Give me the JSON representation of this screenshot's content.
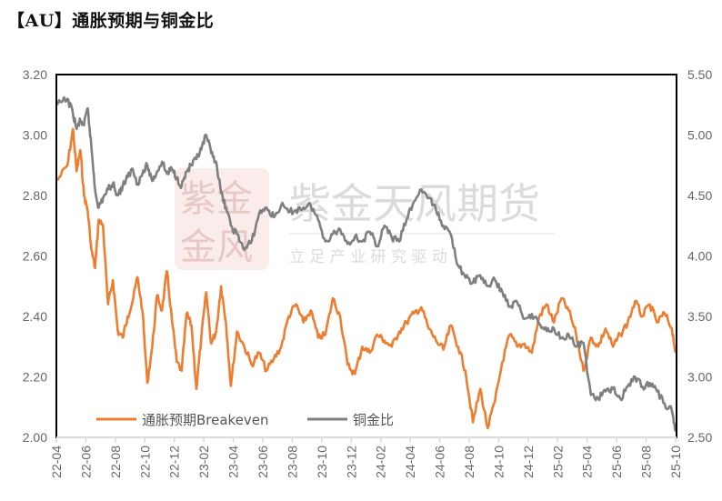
{
  "title": "【AU】通胀预期与铜金比",
  "watermark": {
    "company": "紫金天风期货",
    "slogan": "立 足 产 业   研 究 驱 动",
    "seal_chars": "紫金天风"
  },
  "legend": [
    {
      "label": "通胀预期Breakeven",
      "color": "#ED7D31"
    },
    {
      "label": "铜金比",
      "color": "#7F7F7F"
    }
  ],
  "chart_data": {
    "type": "line",
    "title": "【AU】通胀预期与铜金比",
    "xlabel": "",
    "ylabel_left": "",
    "ylabel_right": "",
    "x_ticks": [
      "22-04",
      "22-06",
      "22-08",
      "22-10",
      "22-12",
      "23-02",
      "23-04",
      "23-06",
      "23-08",
      "23-10",
      "23-12",
      "24-02",
      "24-04",
      "24-06",
      "24-08",
      "24-10",
      "24-12",
      "25-02",
      "25-04",
      "25-06",
      "25-08",
      "25-10"
    ],
    "y_left": {
      "min": 2.0,
      "max": 3.2,
      "ticks": [
        "2.00",
        "2.20",
        "2.40",
        "2.60",
        "2.80",
        "3.00",
        "3.20"
      ]
    },
    "y_right": {
      "min": 2.5,
      "max": 5.5,
      "ticks": [
        "2.50",
        "3.00",
        "3.50",
        "4.00",
        "4.50",
        "5.00",
        "5.50"
      ]
    },
    "grid": false,
    "legend_position": "bottom-left inside",
    "series": [
      {
        "name": "通胀预期Breakeven",
        "axis": "left",
        "color": "#ED7D31",
        "x": [
          "22-04",
          "22-04",
          "22-05",
          "22-05",
          "22-05",
          "22-05",
          "22-06",
          "22-06",
          "22-06",
          "22-06",
          "22-07",
          "22-07",
          "22-07",
          "22-08",
          "22-08",
          "22-08",
          "22-09",
          "22-09",
          "22-09",
          "22-10",
          "22-10",
          "22-10",
          "22-11",
          "22-11",
          "22-11",
          "22-12",
          "22-12",
          "22-12",
          "23-01",
          "23-01",
          "23-01",
          "23-02",
          "23-02",
          "23-02",
          "23-03",
          "23-03",
          "23-03",
          "23-04",
          "23-04",
          "23-05",
          "23-05",
          "23-06",
          "23-06",
          "23-07",
          "23-07",
          "23-08",
          "23-08",
          "23-09",
          "23-09",
          "23-10",
          "23-10",
          "23-11",
          "23-11",
          "23-12",
          "23-12",
          "24-01",
          "24-01",
          "24-02",
          "24-02",
          "24-03",
          "24-03",
          "24-04",
          "24-04",
          "24-05",
          "24-05",
          "24-06",
          "24-06",
          "24-07",
          "24-07",
          "24-08",
          "24-08",
          "24-09",
          "24-09",
          "24-10",
          "24-10",
          "24-11",
          "24-11",
          "24-12",
          "24-12",
          "25-01",
          "25-01",
          "25-02",
          "25-02",
          "25-03",
          "25-03",
          "25-04",
          "25-04",
          "25-05",
          "25-05",
          "25-06",
          "25-06",
          "25-07",
          "25-07",
          "25-08",
          "25-08",
          "25-09",
          "25-09",
          "25-10"
        ],
        "values": [
          2.85,
          2.9,
          3.02,
          2.88,
          2.95,
          2.8,
          2.75,
          2.62,
          2.56,
          2.72,
          2.7,
          2.44,
          2.52,
          2.35,
          2.33,
          2.4,
          2.45,
          2.53,
          2.42,
          2.18,
          2.3,
          2.47,
          2.42,
          2.55,
          2.39,
          2.25,
          2.22,
          2.41,
          2.37,
          2.16,
          2.33,
          2.48,
          2.31,
          2.35,
          2.5,
          2.38,
          2.17,
          2.35,
          2.3,
          2.24,
          2.28,
          2.22,
          2.26,
          2.3,
          2.4,
          2.44,
          2.38,
          2.42,
          2.33,
          2.34,
          2.46,
          2.4,
          2.24,
          2.21,
          2.3,
          2.28,
          2.34,
          2.32,
          2.3,
          2.35,
          2.38,
          2.41,
          2.43,
          2.36,
          2.32,
          2.29,
          2.37,
          2.3,
          2.22,
          2.05,
          2.16,
          2.03,
          2.12,
          2.25,
          2.34,
          2.3,
          2.31,
          2.28,
          2.4,
          2.44,
          2.38,
          2.46,
          2.42,
          2.34,
          2.22,
          2.33,
          2.3,
          2.36,
          2.3,
          2.34,
          2.38,
          2.45,
          2.4,
          2.44,
          2.38,
          2.41,
          2.36,
          2.28
        ]
      },
      {
        "name": "铜金比",
        "axis": "right",
        "color": "#7F7F7F",
        "x": [
          "22-04",
          "22-04",
          "22-05",
          "22-05",
          "22-05",
          "22-05",
          "22-06",
          "22-06",
          "22-06",
          "22-06",
          "22-07",
          "22-07",
          "22-07",
          "22-08",
          "22-08",
          "22-08",
          "22-09",
          "22-09",
          "22-09",
          "22-10",
          "22-10",
          "22-10",
          "22-11",
          "22-11",
          "22-11",
          "22-12",
          "22-12",
          "22-12",
          "23-01",
          "23-01",
          "23-01",
          "23-02",
          "23-02",
          "23-02",
          "23-03",
          "23-03",
          "23-03",
          "23-04",
          "23-04",
          "23-05",
          "23-05",
          "23-06",
          "23-06",
          "23-07",
          "23-07",
          "23-08",
          "23-08",
          "23-09",
          "23-09",
          "23-10",
          "23-10",
          "23-11",
          "23-11",
          "23-12",
          "23-12",
          "24-01",
          "24-01",
          "24-02",
          "24-02",
          "24-03",
          "24-03",
          "24-04",
          "24-04",
          "24-05",
          "24-05",
          "24-06",
          "24-06",
          "24-07",
          "24-07",
          "24-08",
          "24-08",
          "24-09",
          "24-09",
          "24-10",
          "24-10",
          "24-11",
          "24-11",
          "24-12",
          "24-12",
          "25-01",
          "25-01",
          "25-02",
          "25-02",
          "25-03",
          "25-03",
          "25-04",
          "25-04",
          "25-05",
          "25-05",
          "25-06",
          "25-06",
          "25-07",
          "25-07",
          "25-08",
          "25-08",
          "25-09",
          "25-09",
          "25-10"
        ],
        "values": [
          5.25,
          5.3,
          5.18,
          5.05,
          5.12,
          5.08,
          5.22,
          4.9,
          4.55,
          4.4,
          4.48,
          4.55,
          4.6,
          4.5,
          4.58,
          4.65,
          4.72,
          4.6,
          4.68,
          4.75,
          4.62,
          4.7,
          4.78,
          4.68,
          4.72,
          4.65,
          4.58,
          4.7,
          4.75,
          4.8,
          4.88,
          5.0,
          4.85,
          4.78,
          4.52,
          4.4,
          4.25,
          4.18,
          4.05,
          4.12,
          4.35,
          4.4,
          4.32,
          4.42,
          4.36,
          4.38,
          4.4,
          4.42,
          4.3,
          4.12,
          4.18,
          4.22,
          4.1,
          4.16,
          4.12,
          4.2,
          4.08,
          4.25,
          4.15,
          4.12,
          4.3,
          4.45,
          4.55,
          4.48,
          4.38,
          4.25,
          4.18,
          3.92,
          3.82,
          3.78,
          3.84,
          3.75,
          3.8,
          3.7,
          3.58,
          3.62,
          3.48,
          3.52,
          3.44,
          3.38,
          3.4,
          3.32,
          3.35,
          3.25,
          3.28,
          2.85,
          2.82,
          2.88,
          2.9,
          2.82,
          2.92,
          3.0,
          2.92,
          2.95,
          2.88,
          2.78,
          2.72,
          2.55
        ]
      }
    ]
  }
}
